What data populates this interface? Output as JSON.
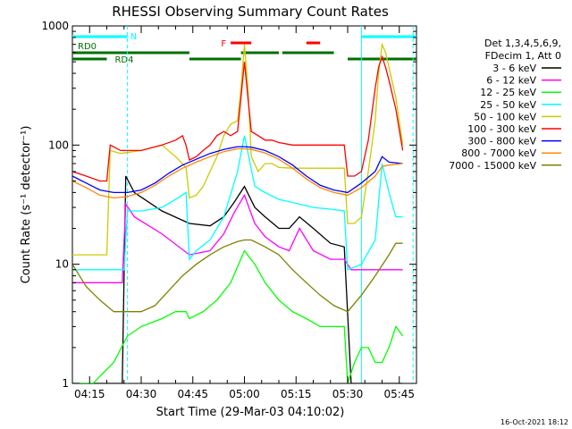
{
  "chart_data": {
    "type": "line",
    "title": "RHESSI Observing Summary Count Rates",
    "xlabel": "Start Time (29-Mar-03 04:10:02)",
    "ylabel": "Count Rate (s⁻¹ detector⁻¹)",
    "x_unit": "minutes after 04:10:02",
    "xlim": [
      0,
      100
    ],
    "ylim": [
      1,
      1000
    ],
    "y_scale": "log",
    "x_ticks": [
      {
        "x": 5,
        "label": "04:15"
      },
      {
        "x": 20,
        "label": "04:30"
      },
      {
        "x": 35,
        "label": "04:45"
      },
      {
        "x": 50,
        "label": "05:00"
      },
      {
        "x": 65,
        "label": "05:15"
      },
      {
        "x": 80,
        "label": "05:30"
      },
      {
        "x": 95,
        "label": "05:45"
      }
    ],
    "y_ticks": [
      {
        "y": 1,
        "label": "1"
      },
      {
        "y": 10,
        "label": "10"
      },
      {
        "y": 100,
        "label": "100"
      },
      {
        "y": 1000,
        "label": "1000"
      }
    ],
    "legend_position": "right",
    "legend_header": [
      "Det 1,3,4,5,6,9,",
      "FDecim 1, Att 0"
    ],
    "series": [
      {
        "name": "3 - 6 keV",
        "color": "#000000",
        "x": [
          0,
          4,
          8,
          14.5,
          15.5,
          18,
          26,
          34,
          40,
          44,
          47,
          50,
          53,
          56,
          60,
          63,
          66,
          70,
          75,
          79,
          81,
          84,
          86,
          88,
          90,
          93,
          96
        ],
        "y": [
          1,
          1,
          1,
          1,
          55,
          40,
          28,
          22,
          21,
          25,
          33,
          45,
          30,
          25,
          20,
          20,
          25,
          20,
          15,
          14,
          1,
          1,
          1,
          1,
          1,
          1,
          1
        ]
      },
      {
        "name": "6 - 12 keV",
        "color": "#ff00ff",
        "x": [
          0,
          4,
          8,
          14.5,
          15.5,
          18,
          26,
          34,
          40,
          44,
          47,
          50,
          53,
          56,
          60,
          63,
          66,
          70,
          75,
          79,
          81,
          84,
          88,
          92,
          96
        ],
        "y": [
          7,
          7,
          7,
          7,
          32,
          25,
          18,
          12,
          13,
          18,
          27,
          38,
          22,
          17,
          14,
          13,
          20,
          13,
          11,
          11,
          9,
          9,
          9,
          9,
          9
        ]
      },
      {
        "name": "12 - 25 keV",
        "color": "#00ff00",
        "x": [
          0,
          6,
          12,
          16,
          20,
          26,
          30,
          33,
          34,
          38,
          42,
          46,
          50,
          53,
          56,
          60,
          64,
          68,
          72,
          76,
          79,
          80,
          82,
          84,
          86,
          88,
          90,
          92,
          94,
          96
        ],
        "y": [
          1,
          1,
          1.5,
          2.5,
          3,
          3.5,
          4,
          4,
          3.5,
          4,
          5,
          7,
          13,
          10,
          7,
          5,
          4,
          3.5,
          3,
          3,
          3,
          1,
          1.5,
          2,
          2,
          1.5,
          1.5,
          2,
          3,
          2.5
        ]
      },
      {
        "name": "25 - 50 keV",
        "color": "#00ffff",
        "x": [
          0,
          4,
          8,
          15,
          16,
          20,
          26,
          30,
          33,
          34,
          36,
          40,
          44,
          48,
          50,
          53,
          56,
          60,
          64,
          70,
          75,
          79,
          80,
          84,
          88,
          90,
          92,
          94,
          96
        ],
        "y": [
          9,
          9,
          9,
          9,
          28,
          28,
          30,
          35,
          40,
          11,
          13,
          16,
          25,
          60,
          120,
          45,
          40,
          35,
          33,
          30,
          29,
          28,
          9,
          10,
          16,
          70,
          40,
          25,
          25
        ]
      },
      {
        "name": "50 - 100 keV",
        "color": "#cccc00",
        "x": [
          0,
          4,
          8,
          10,
          11,
          14,
          20,
          26,
          30,
          33,
          34,
          36,
          38,
          40,
          42,
          44,
          46,
          48,
          49,
          50,
          51,
          52,
          54,
          56,
          58,
          60,
          64,
          70,
          76,
          79,
          80,
          82,
          84,
          86,
          88,
          89,
          90,
          91,
          92,
          94,
          96
        ],
        "y": [
          12,
          12,
          12,
          12,
          90,
          85,
          90,
          100,
          80,
          65,
          36,
          38,
          45,
          60,
          80,
          120,
          150,
          160,
          300,
          700,
          300,
          80,
          60,
          70,
          70,
          65,
          64,
          64,
          64,
          64,
          22,
          22,
          25,
          60,
          160,
          400,
          700,
          600,
          450,
          250,
          100
        ]
      },
      {
        "name": "100 - 300 keV",
        "color": "#ff0000",
        "x": [
          0,
          4,
          8,
          10,
          11,
          14,
          20,
          26,
          30,
          32,
          33,
          34,
          36,
          38,
          40,
          42,
          44,
          46,
          48,
          49,
          50,
          51,
          52,
          54,
          56,
          58,
          60,
          64,
          70,
          76,
          79,
          80,
          82,
          84,
          86,
          88,
          89,
          90,
          91,
          92,
          94,
          96
        ],
        "y": [
          60,
          55,
          50,
          50,
          100,
          90,
          90,
          100,
          110,
          120,
          100,
          75,
          80,
          90,
          100,
          120,
          130,
          120,
          130,
          250,
          500,
          250,
          130,
          120,
          110,
          110,
          105,
          100,
          100,
          100,
          100,
          55,
          55,
          60,
          110,
          300,
          450,
          550,
          450,
          350,
          200,
          90
        ]
      },
      {
        "name": "300 - 800 keV",
        "color": "#0000ff",
        "x": [
          0,
          4,
          8,
          12,
          16,
          20,
          24,
          28,
          32,
          36,
          40,
          44,
          48,
          50,
          52,
          56,
          60,
          64,
          68,
          72,
          76,
          80,
          84,
          88,
          90,
          92,
          96
        ],
        "y": [
          55,
          48,
          42,
          40,
          40,
          42,
          48,
          58,
          68,
          76,
          85,
          92,
          97,
          97,
          96,
          90,
          80,
          68,
          55,
          46,
          42,
          40,
          48,
          60,
          80,
          72,
          70
        ]
      },
      {
        "name": "800 - 7000 keV",
        "color": "#ff8800",
        "x": [
          0,
          4,
          8,
          12,
          16,
          20,
          24,
          28,
          32,
          36,
          40,
          44,
          48,
          50,
          52,
          56,
          60,
          64,
          68,
          72,
          76,
          80,
          84,
          88,
          90,
          92,
          96
        ],
        "y": [
          50,
          44,
          38,
          36,
          37,
          40,
          46,
          55,
          64,
          72,
          80,
          88,
          93,
          93,
          92,
          86,
          76,
          64,
          52,
          44,
          40,
          38,
          44,
          55,
          66,
          68,
          70
        ]
      },
      {
        "name": "7000 - 15000 keV",
        "color": "#808000",
        "x": [
          0,
          4,
          8,
          12,
          16,
          20,
          24,
          28,
          32,
          36,
          40,
          44,
          48,
          50,
          52,
          56,
          60,
          64,
          68,
          72,
          76,
          80,
          84,
          88,
          92,
          94,
          96
        ],
        "y": [
          10,
          6.5,
          5,
          4,
          4,
          4,
          4.5,
          6,
          8,
          10,
          12,
          14,
          15.5,
          16,
          16,
          14,
          12,
          9,
          7,
          5.5,
          4.5,
          4,
          5.5,
          8,
          12,
          15,
          15
        ]
      }
    ],
    "status_bars": [
      {
        "label": "N",
        "color": "#00ffff",
        "segments": [
          [
            0,
            16
          ],
          [
            84,
            100
          ]
        ]
      },
      {
        "label": "F",
        "color": "#ff0000",
        "segments": [
          [
            46,
            52
          ],
          [
            68,
            72
          ]
        ]
      },
      {
        "label": "RD0",
        "color": "#007000",
        "segments": [
          [
            0,
            34
          ],
          [
            49,
            60
          ],
          [
            61,
            76
          ]
        ]
      },
      {
        "label": "RD4",
        "color": "#007000",
        "segments": [
          [
            0,
            10
          ],
          [
            34,
            49
          ],
          [
            80,
            100
          ]
        ]
      }
    ],
    "vlines": [
      {
        "x": 16,
        "color": "#00ffff",
        "style": "dashed"
      },
      {
        "x": 84,
        "color": "#00ffff",
        "style": "solid"
      },
      {
        "x": 99,
        "color": "#00ffff",
        "style": "dashed"
      }
    ]
  },
  "footer": {
    "date": "16-Oct-2021 18:12"
  }
}
